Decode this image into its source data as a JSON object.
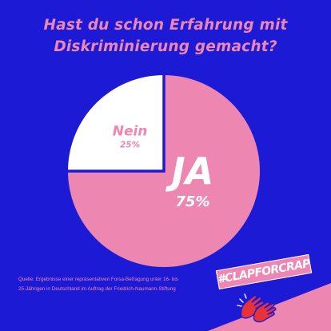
{
  "colors": {
    "background": "#1c1ad4",
    "accent_pink": "#ee86b2",
    "white": "#ffffff",
    "hand_red": "#e8323a"
  },
  "title_lines": [
    "Hast du schon Erfahrung mit",
    "Diskriminierung gemacht?"
  ],
  "chart_data": {
    "type": "pie",
    "title": "Hast du schon Erfahrung mit Diskriminierung gemacht?",
    "slices": [
      {
        "label": "JA",
        "value": 75,
        "display": "75%",
        "color": "#ee86b2",
        "text_color": "#ffffff"
      },
      {
        "label": "Nein",
        "value": 25,
        "display": "25%",
        "color": "#ffffff",
        "text_color": "#ee86b2"
      }
    ]
  },
  "source_lines": [
    "Quelle: Ergebnisse einer repräsentativen Forsa-Befragung unter 16- bis",
    "25-Jährigen in Deutschland im Auftrag der Friedrich-Naumann-Stiftung"
  ],
  "brand": {
    "hashtag": "#CLAPFORCRAP",
    "icon": "clapping-hands-icon"
  }
}
